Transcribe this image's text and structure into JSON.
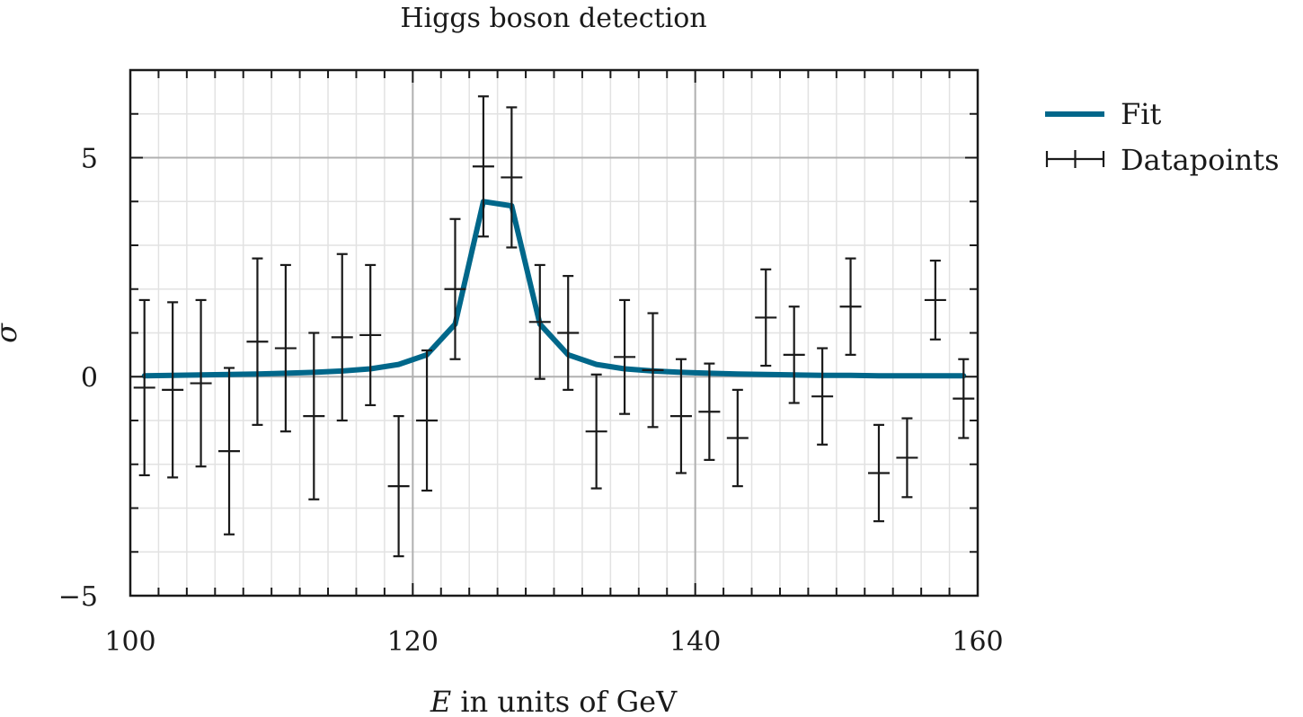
{
  "chart_data": {
    "type": "line",
    "title": "Higgs boson detection",
    "xlabel_var": "E",
    "xlabel_rest": " in units of GeV",
    "ylabel": "σ",
    "xlim": [
      100,
      160
    ],
    "ylim": [
      -5,
      7
    ],
    "x_ticks": [
      100,
      120,
      140,
      160
    ],
    "x_tick_labels": [
      "100",
      "120",
      "140",
      "160"
    ],
    "y_ticks": [
      -5,
      0,
      5
    ],
    "y_tick_labels": [
      "−5",
      "0",
      "5"
    ],
    "x_minor_step": 2,
    "y_minor_step": 1,
    "grid": true,
    "legend_position": "outside-right-top",
    "colors": {
      "fit": "#00678a",
      "datapoints": "#1a1a1a"
    },
    "series": [
      {
        "name": "Fit",
        "kind": "line",
        "x": [
          101,
          103,
          105,
          107,
          109,
          111,
          113,
          115,
          117,
          119,
          121,
          123,
          125,
          127,
          129,
          131,
          133,
          135,
          137,
          139,
          141,
          143,
          145,
          147,
          149,
          151,
          153,
          155,
          157,
          159
        ],
        "y": [
          0.02,
          0.03,
          0.04,
          0.05,
          0.06,
          0.08,
          0.1,
          0.13,
          0.18,
          0.28,
          0.5,
          1.2,
          4.0,
          3.9,
          1.2,
          0.5,
          0.28,
          0.18,
          0.13,
          0.1,
          0.08,
          0.06,
          0.05,
          0.04,
          0.03,
          0.03,
          0.02,
          0.02,
          0.02,
          0.02
        ]
      },
      {
        "name": "Datapoints",
        "kind": "errorbar",
        "x": [
          101,
          103,
          105,
          107,
          109,
          111,
          113,
          115,
          117,
          119,
          121,
          123,
          125,
          127,
          129,
          131,
          133,
          135,
          137,
          139,
          141,
          143,
          145,
          147,
          149,
          151,
          153,
          155,
          157,
          159
        ],
        "y": [
          -0.25,
          -0.3,
          -0.15,
          -1.7,
          0.8,
          0.65,
          -0.9,
          0.9,
          0.95,
          -2.5,
          -1.0,
          2.0,
          4.8,
          4.55,
          1.25,
          1.0,
          -1.25,
          0.45,
          0.15,
          -0.9,
          -0.8,
          -1.4,
          1.35,
          0.5,
          -0.45,
          1.6,
          -2.2,
          -1.85,
          1.75,
          -0.5
        ],
        "yerr": [
          2.0,
          2.0,
          1.9,
          1.9,
          1.9,
          1.9,
          1.9,
          1.9,
          1.6,
          1.6,
          1.6,
          1.6,
          1.6,
          1.6,
          1.3,
          1.3,
          1.3,
          1.3,
          1.3,
          1.3,
          1.1,
          1.1,
          1.1,
          1.1,
          1.1,
          1.1,
          1.1,
          0.9,
          0.9,
          0.9
        ]
      }
    ]
  }
}
